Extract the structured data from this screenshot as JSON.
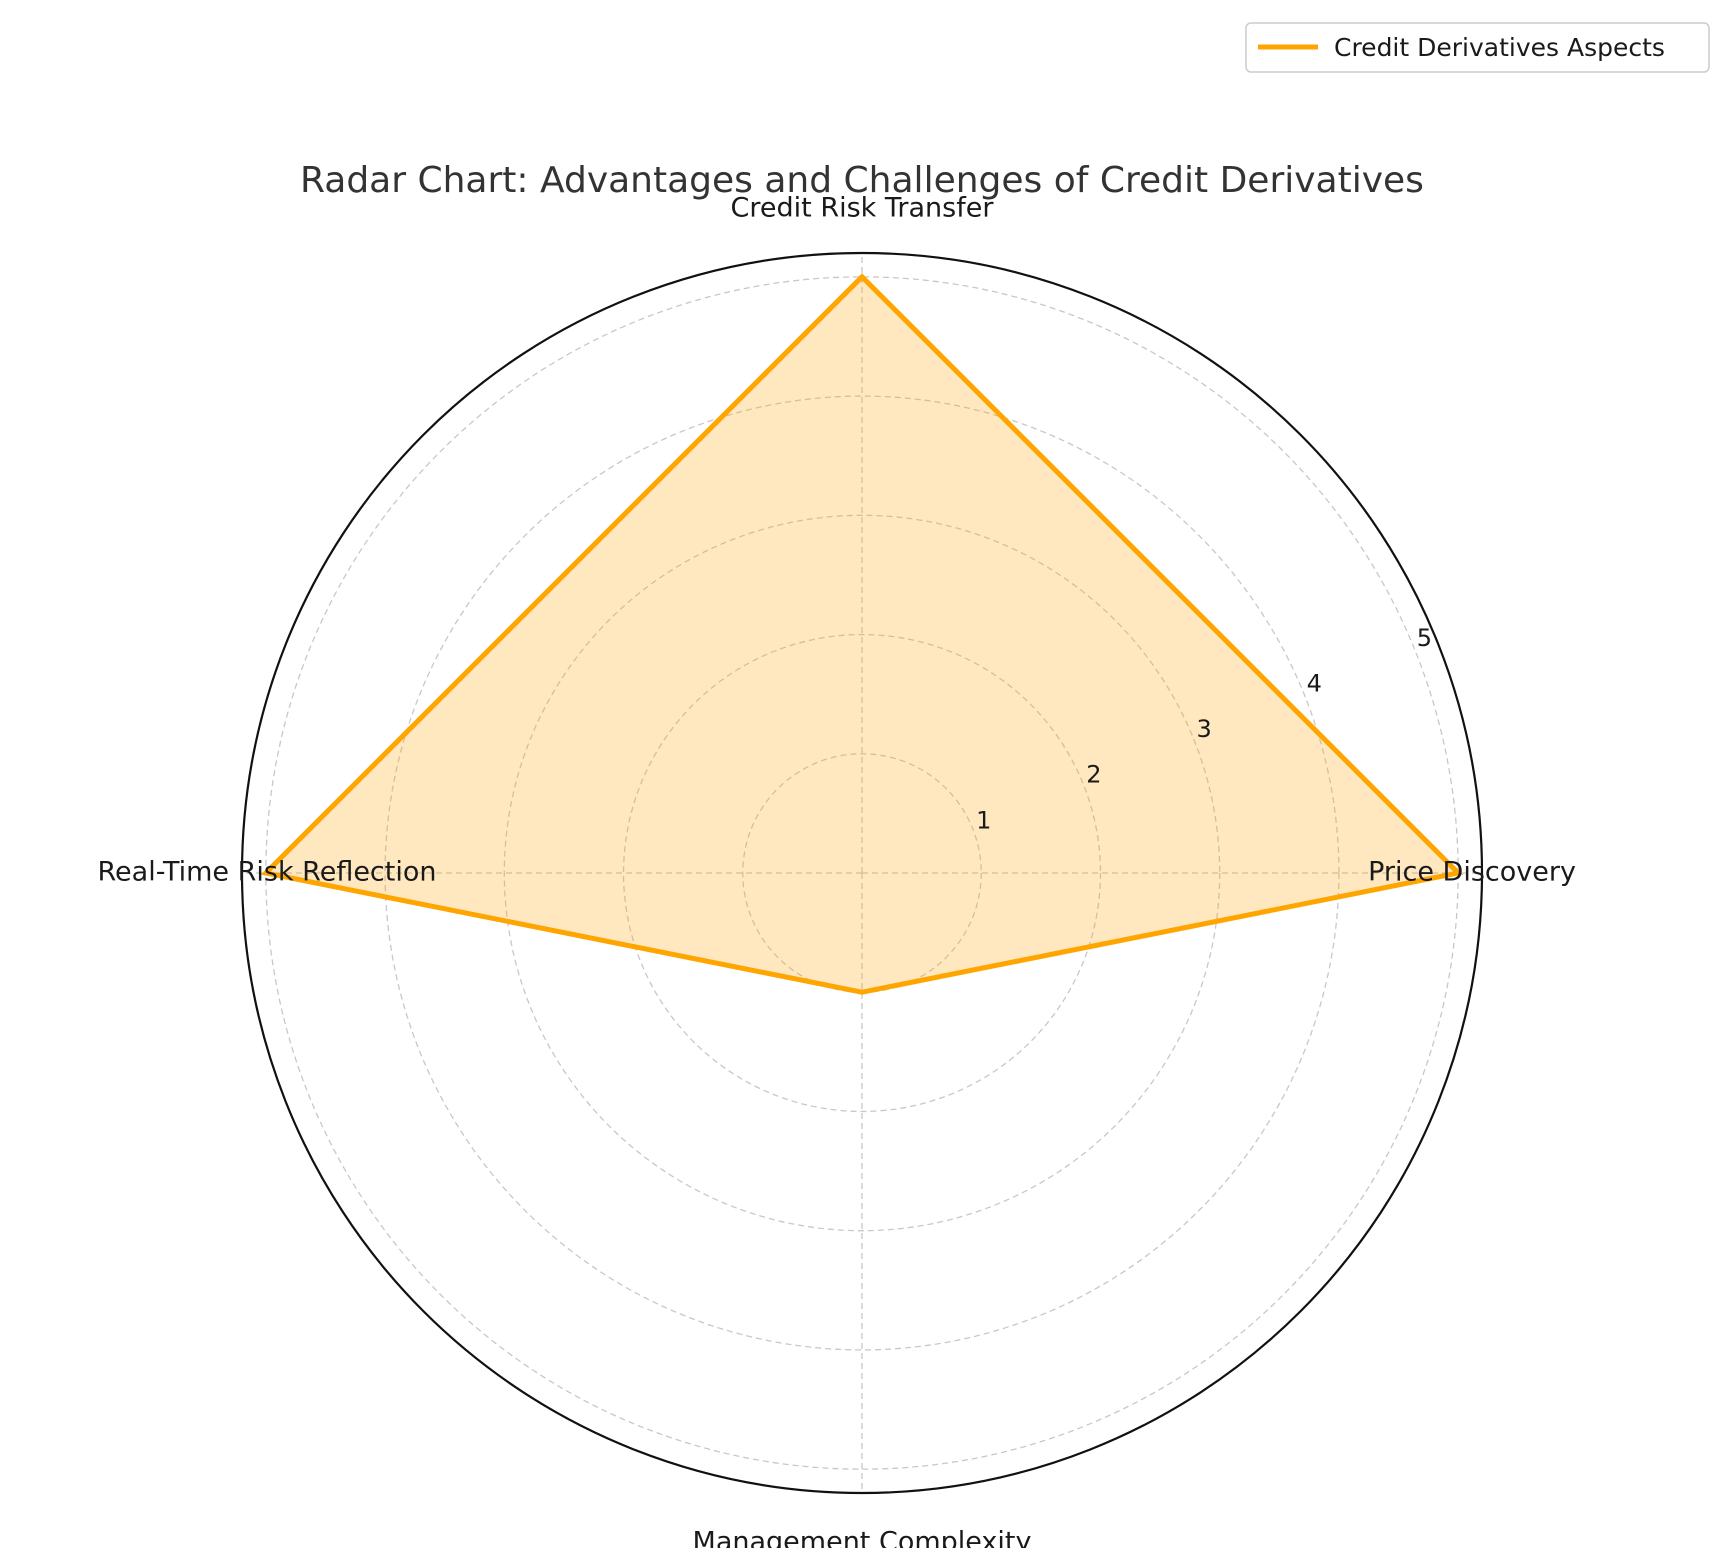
{
  "chart_data": {
    "type": "radar",
    "title": "Radar Chart: Advantages and Challenges of Credit Derivatives",
    "categories": [
      "Credit Risk Transfer",
      "Real-Time Risk Reflection",
      "Management Complexity",
      "Price Discovery"
    ],
    "series": [
      {
        "name": "Credit Derivatives Aspects",
        "values": [
          5,
          5,
          1,
          5
        ],
        "color": "#FFA500"
      }
    ],
    "rticks": [
      "1",
      "2",
      "3",
      "4",
      "5"
    ],
    "rlim": [
      0,
      5.2
    ],
    "grid": true,
    "legend": "top-right"
  }
}
